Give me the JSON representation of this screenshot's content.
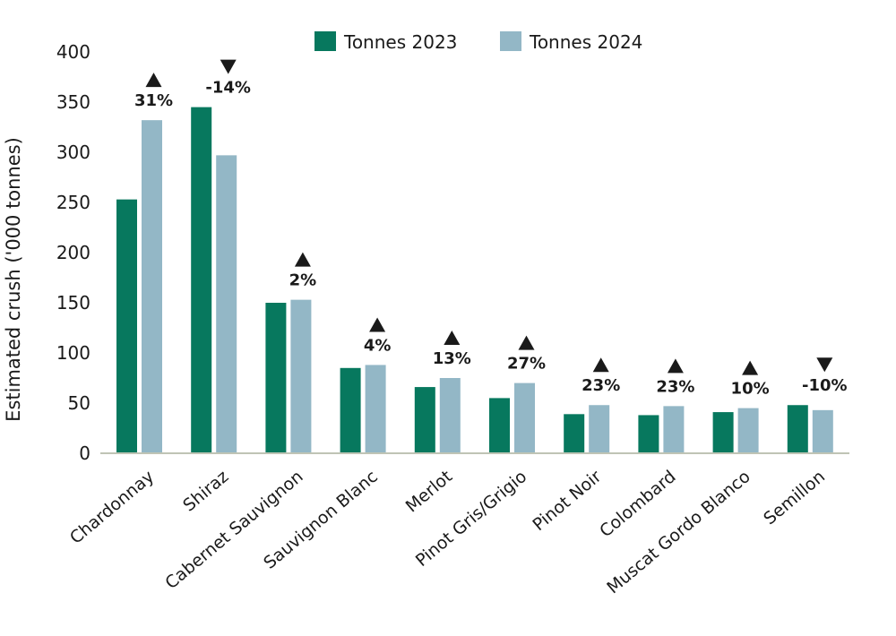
{
  "chart_data": {
    "type": "bar",
    "ylabel": "Estimated crush ('000 tonnes)",
    "ylim": [
      0,
      400
    ],
    "yticks": [
      0,
      50,
      100,
      150,
      200,
      250,
      300,
      350,
      400
    ],
    "grid": false,
    "legend_position": "top",
    "categories": [
      "Chardonnay",
      "Shiraz",
      "Cabernet Sauvignon",
      "Sauvignon Blanc",
      "Merlot",
      "Pinot Gris/Grigio",
      "Pinot Noir",
      "Colombard",
      "Muscat Gordo Blanco",
      "Semillon"
    ],
    "series": [
      {
        "name": "Tonnes 2023",
        "color": "#07785e",
        "values": [
          253,
          345,
          150,
          85,
          66,
          55,
          39,
          38,
          41,
          48
        ]
      },
      {
        "name": "Tonnes 2024",
        "color": "#93b7c6",
        "values": [
          332,
          297,
          153,
          88,
          75,
          70,
          48,
          47,
          45,
          43
        ]
      }
    ],
    "annotations": {
      "labels": [
        "31%",
        "-14%",
        "2%",
        "4%",
        "13%",
        "27%",
        "23%",
        "23%",
        "10%",
        "-10%"
      ],
      "direction": [
        "up",
        "down",
        "up",
        "up",
        "up",
        "up",
        "up",
        "up",
        "up",
        "down"
      ]
    }
  }
}
